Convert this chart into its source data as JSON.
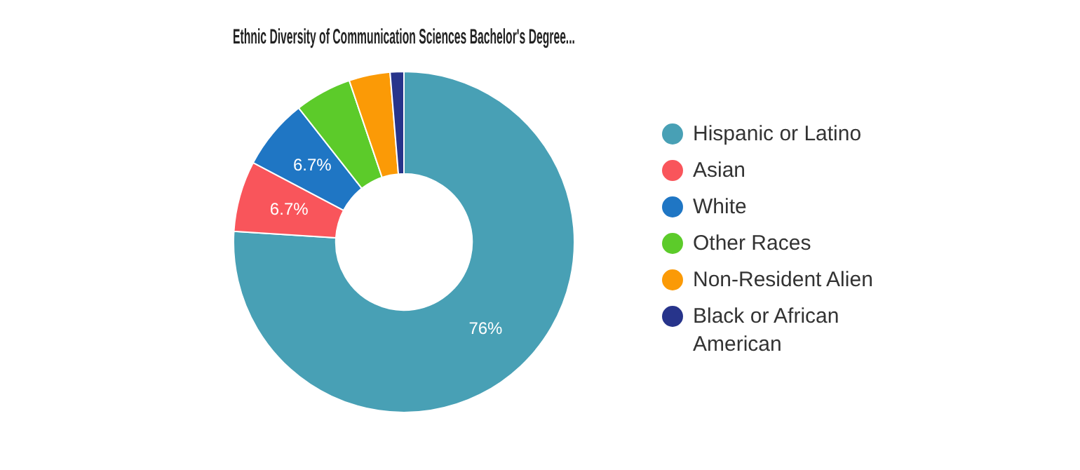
{
  "chart_data": {
    "type": "donut",
    "title": "Ethnic Diversity of Communication Sciences Bachelor's Degree...",
    "categories": [
      "Hispanic or Latino",
      "Asian",
      "White",
      "Other Races",
      "Non-Resident Alien",
      "Black or African American"
    ],
    "values": [
      76,
      6.7,
      6.7,
      5.4,
      3.9,
      1.3
    ],
    "colors": [
      "#48a0b5",
      "#f9555b",
      "#1f76c4",
      "#5ccb2a",
      "#fb9a06",
      "#27348b"
    ],
    "value_labels": [
      "76%",
      "6.7%",
      "6.7%",
      null,
      null,
      null
    ],
    "legend": "right"
  }
}
